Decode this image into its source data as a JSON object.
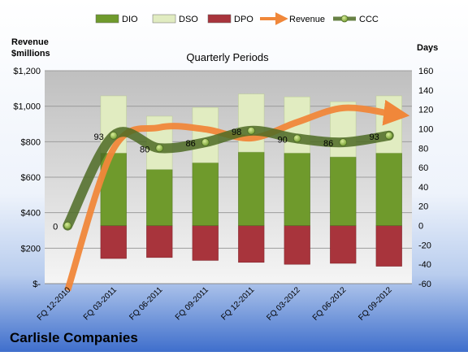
{
  "chart_data": {
    "type": "bar",
    "title": "Quarterly Periods",
    "company": "Carlisle Companies",
    "left_axis": {
      "label_line1": "Revenue",
      "label_line2": "$millions",
      "ylim": [
        0,
        1200
      ],
      "ticks": [
        "$-",
        "$200",
        "$400",
        "$600",
        "$800",
        "$1,000",
        "$1,200"
      ]
    },
    "right_axis": {
      "label": "Days",
      "ylim": [
        -60,
        160
      ],
      "ticks": [
        "-60",
        "-40",
        "-20",
        "0",
        "20",
        "40",
        "60",
        "80",
        "100",
        "120",
        "140",
        "160"
      ]
    },
    "categories": [
      "FQ 12-2010",
      "FQ 03-2011",
      "FQ 06-2011",
      "FQ 09-2011",
      "FQ 12-2011",
      "FQ 03-2012",
      "FQ 06-2012",
      "FQ 09-2012"
    ],
    "legend_position": "top",
    "grid": true,
    "series": [
      {
        "name": "DIO",
        "type": "bar",
        "axis": "right",
        "color": "#6f9a2c",
        "values": [
          null,
          75,
          58,
          65,
          76,
          75,
          71,
          75
        ]
      },
      {
        "name": "DSO",
        "type": "bar",
        "axis": "right",
        "color": "#e1ecc1",
        "values": [
          null,
          59,
          55,
          57,
          60,
          58,
          57,
          59
        ]
      },
      {
        "name": "DPO",
        "type": "bar",
        "axis": "right",
        "color": "#a8343c",
        "values": [
          null,
          -34,
          -33,
          -36,
          -38,
          -40,
          -39,
          -42
        ]
      },
      {
        "name": "Revenue",
        "type": "line",
        "axis": "left",
        "color": "#f0873a",
        "values": [
          -60,
          760,
          880,
          870,
          820,
          910,
          990,
          960
        ]
      },
      {
        "name": "CCC",
        "type": "line",
        "axis": "right",
        "color": "#4d6b24",
        "values": [
          0,
          93,
          80,
          86,
          98,
          90,
          86,
          93
        ],
        "labels": [
          "0",
          "93",
          "80",
          "86",
          "98",
          "90",
          "86",
          "93"
        ]
      }
    ]
  }
}
